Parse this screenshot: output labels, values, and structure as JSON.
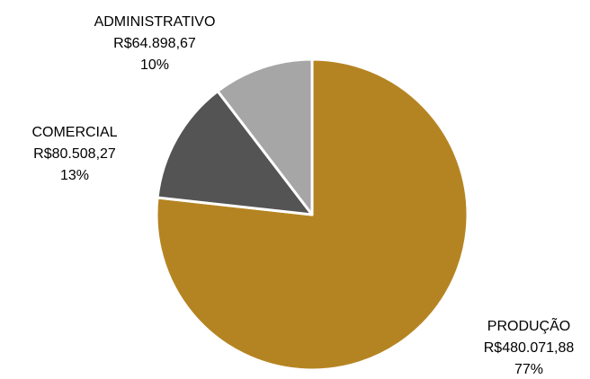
{
  "chart_data": {
    "type": "pie",
    "start_angle_deg": 0,
    "direction": "clockwise",
    "slices": [
      {
        "name": "PRODUÇÃO",
        "value": 480071.88,
        "value_label": "R$480.071,88",
        "percent_label": "77%",
        "color": "#B58422"
      },
      {
        "name": "COMERCIAL",
        "value": 80508.27,
        "value_label": "R$80.508,27",
        "percent_label": "13%",
        "color": "#545454"
      },
      {
        "name": "ADMINISTRATIVO",
        "value": 64898.67,
        "value_label": "R$64.898,67",
        "percent_label": "10%",
        "color": "#A6A6A6"
      }
    ],
    "slice_border_color": "#FFFFFF",
    "legend": "none"
  }
}
